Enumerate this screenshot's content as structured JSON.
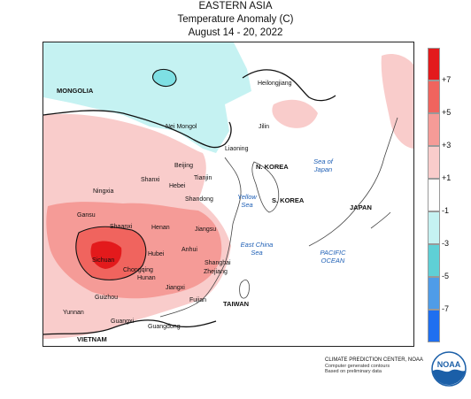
{
  "title": {
    "region": "EASTERN ASIA",
    "variable": "Temperature Anomaly (C)",
    "period": "August 14 - 20, 2022"
  },
  "legend": {
    "ticks": [
      "+7",
      "+5",
      "+3",
      "+1",
      "-1",
      "-3",
      "-5",
      "-7"
    ],
    "bins": [
      {
        "range": ">+7",
        "color": "#e31a1c"
      },
      {
        "range": "+5 to +7",
        "color": "#f0645e"
      },
      {
        "range": "+3 to +5",
        "color": "#f59b97"
      },
      {
        "range": "+1 to +3",
        "color": "#f9cccb"
      },
      {
        "range": "-1 to +1",
        "color": "#ffffff"
      },
      {
        "range": "-3 to -1",
        "color": "#c5f2f2"
      },
      {
        "range": "-5 to -3",
        "color": "#5fd0d6"
      },
      {
        "range": "-7 to -5",
        "color": "#4f9ce8"
      },
      {
        "range": "<-7",
        "color": "#1f6ff0"
      }
    ]
  },
  "map_labels": {
    "mongolia": "MONGOLIA",
    "heilongjiang": "Heilongjiang",
    "nei_mongol": "Nei Mongol",
    "jilin": "Jilin",
    "liaoning": "Liaoning",
    "beijing": "Beijing",
    "n_korea": "N. KOREA",
    "shanxi": "Shanxi",
    "tianjin": "Tianjin",
    "hebei": "Hebei",
    "ningxia": "Ningxia",
    "shandong": "Shandong",
    "s_korea": "S. KOREA",
    "japan": "JAPAN",
    "gansu": "Gansu",
    "shaanxi": "Shaanxi",
    "henan": "Henan",
    "jiangsu": "Jiangsu",
    "sichuan": "Sichuan",
    "hubei": "Hubei",
    "anhui": "Anhui",
    "shanghai": "Shanghai",
    "zhejiang": "Zhejiang",
    "chongqing": "Chongqing",
    "hunan": "Hunan",
    "jiangxi": "Jiangxi",
    "guizhou": "Guizhou",
    "fujian": "Fujian",
    "taiwan": "TAIWAN",
    "yunnan": "Yunnan",
    "guangxi": "Guangxi",
    "guangdong": "Guangdong",
    "vietnam": "VIETNAM"
  },
  "sea_labels": {
    "sea_of_japan": "Sea of Japan",
    "yellow_sea": "Yellow Sea",
    "east_china_sea": "East China Sea",
    "pacific_ocean": "PACIFIC OCEAN"
  },
  "footer": {
    "line1": "CLIMATE PREDICTION CENTER, NOAA",
    "line2": "Computer generated contours",
    "line3": "Based on preliminary data"
  },
  "logo": {
    "text": "NOAA",
    "color": "#1b5fa8"
  }
}
